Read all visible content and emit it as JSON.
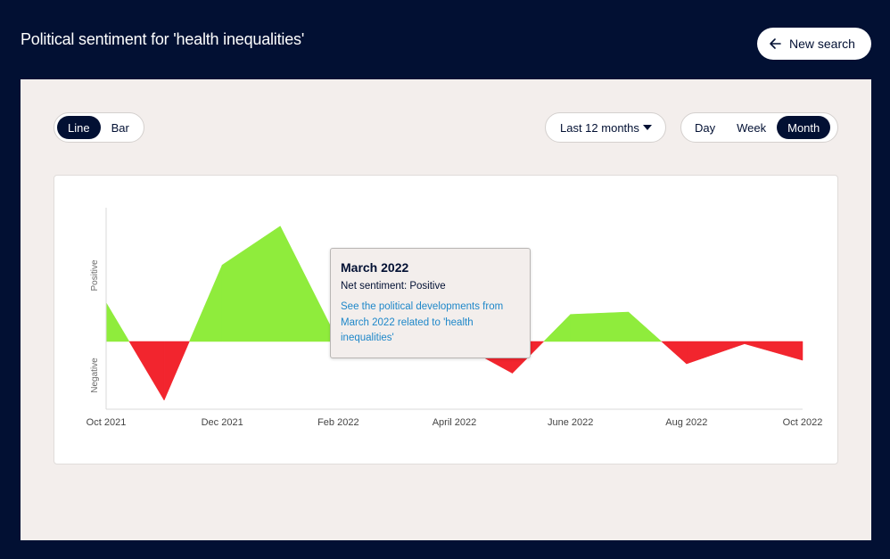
{
  "header": {
    "title": "Political sentiment for 'health inequalities'",
    "new_search_label": "New search"
  },
  "controls": {
    "chart_types": [
      {
        "label": "Line",
        "active": true
      },
      {
        "label": "Bar",
        "active": false
      }
    ],
    "range": {
      "label": "Last 12 months"
    },
    "granularity": [
      {
        "label": "Day",
        "active": false
      },
      {
        "label": "Week",
        "active": false
      },
      {
        "label": "Month",
        "active": true
      }
    ]
  },
  "tooltip": {
    "title": "March 2022",
    "sentiment": "Net sentiment: Positive",
    "link": "See the political developments from March 2022 related to 'health inequalities'"
  },
  "colors": {
    "positive": "#8fec3c",
    "negative": "#f2252e",
    "navy": "#021033",
    "link": "#1e87c9"
  },
  "chart_data": {
    "type": "area",
    "ylabel_positive": "Positive",
    "ylabel_negative": "Negative",
    "ylim": [
      -1,
      1
    ],
    "x_tick_labels": [
      "Oct 2021",
      "Dec 2021",
      "Feb 2022",
      "April 2022",
      "June 2022",
      "Aug 2022",
      "Oct 2022"
    ],
    "series": [
      {
        "x": [
          "2021-10-01",
          "2021-11-01",
          "2021-12-01",
          "2022-01-01",
          "2022-02-01",
          "2022-03-01",
          "2022-04-01",
          "2022-05-01",
          "2022-06-01",
          "2022-07-01",
          "2022-08-01",
          "2022-09-01",
          "2022-10-01"
        ],
        "values": [
          0.33,
          -0.5,
          0.65,
          0.98,
          0.0,
          0.72,
          0.0,
          -0.27,
          0.23,
          0.25,
          -0.19,
          -0.02,
          -0.16
        ]
      }
    ]
  }
}
